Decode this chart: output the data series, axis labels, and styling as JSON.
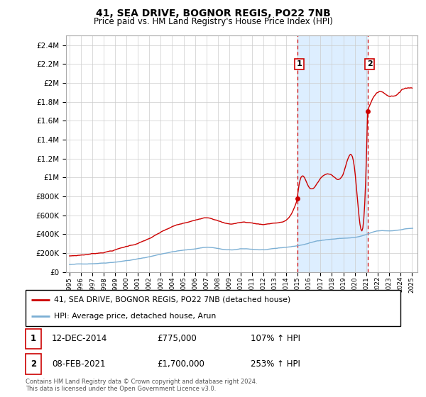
{
  "title": "41, SEA DRIVE, BOGNOR REGIS, PO22 7NB",
  "subtitle": "Price paid vs. HM Land Registry's House Price Index (HPI)",
  "legend_line1": "41, SEA DRIVE, BOGNOR REGIS, PO22 7NB (detached house)",
  "legend_line2": "HPI: Average price, detached house, Arun",
  "sale1_date": "12-DEC-2014",
  "sale1_price": 775000,
  "sale1_label": "107% ↑ HPI",
  "sale2_date": "08-FEB-2021",
  "sale2_price": 1700000,
  "sale2_label": "253% ↑ HPI",
  "footer": "Contains HM Land Registry data © Crown copyright and database right 2024.\nThis data is licensed under the Open Government Licence v3.0.",
  "sale1_x": 2014.96,
  "sale2_x": 2021.12,
  "red_color": "#cc0000",
  "blue_color": "#7bafd4",
  "shade_color": "#ddeeff",
  "grid_color": "#cccccc",
  "ylim_max": 2500000,
  "xlim_left": 1994.7,
  "xlim_right": 2025.5
}
